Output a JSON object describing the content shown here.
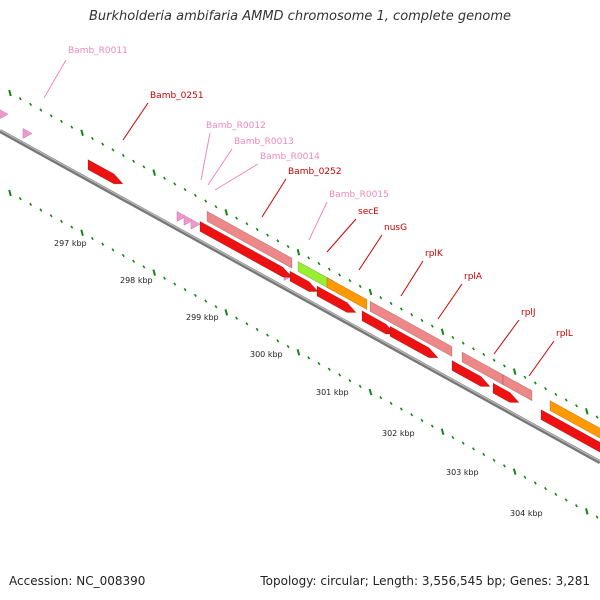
{
  "title": "Burkholderia ambifaria AMMD chromosome 1, complete genome",
  "footer": {
    "accession": "Accession: NC_008390",
    "summary": "Topology: circular; Length: 3,556,545 bp; Genes: 3,281"
  },
  "colors": {
    "cds": "#ee1111",
    "rna": "#ee8888",
    "orange": "#ff9900",
    "lime": "#99ee33",
    "trna": "#ee99cc",
    "ticks": "#118811",
    "label_dark": "#cc0000",
    "label_light": "#ee88bb"
  },
  "kbp_labels": [
    "297 kbp",
    "298 kbp",
    "299 kbp",
    "300 kbp",
    "301 kbp",
    "302 kbp",
    "303 kbp",
    "304 kbp"
  ],
  "gene_labels": [
    "Bamb_R0011",
    "Bamb_0251",
    "Bamb_R0012",
    "Bamb_R0013",
    "Bamb_R0014",
    "Bamb_0252",
    "Bamb_R0015",
    "secE",
    "nusG",
    "rplK",
    "rplA",
    "rplJ",
    "rplL"
  ]
}
